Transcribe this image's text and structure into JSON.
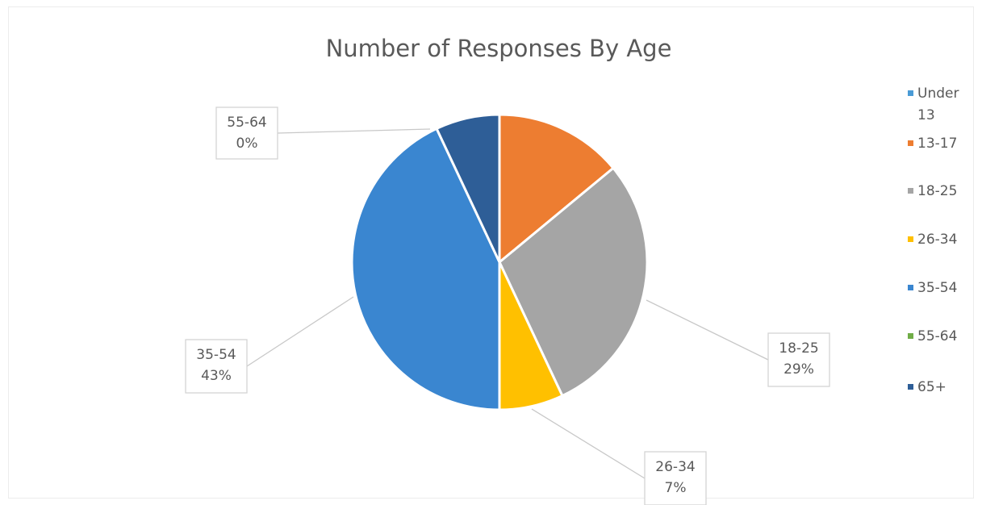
{
  "chart_data": {
    "type": "pie",
    "title": "Number of Responses By Age",
    "categories": [
      "Under 13",
      "13-17",
      "18-25",
      "26-34",
      "35-54",
      "55-64",
      "65+"
    ],
    "values": [
      14,
      0,
      29,
      7,
      43,
      0,
      7
    ],
    "colors": [
      "#ED7D31",
      "#F4B183",
      "#A5A5A5",
      "#FFC000",
      "#3A86D0",
      "#70AD47",
      "#2E5E97"
    ],
    "legend": {
      "position": "right",
      "entries": [
        {
          "label_lines": [
            "Under",
            "13"
          ],
          "color": "#4A9BD6"
        },
        {
          "label_lines": [
            "13-17"
          ],
          "color": "#ED7D31"
        },
        {
          "label_lines": [
            "18-25"
          ],
          "color": "#A5A5A5"
        },
        {
          "label_lines": [
            "26-34"
          ],
          "color": "#FFC000"
        },
        {
          "label_lines": [
            "35-54"
          ],
          "color": "#3A86D0"
        },
        {
          "label_lines": [
            "55-64"
          ],
          "color": "#70AD47"
        },
        {
          "label_lines": [
            "65+"
          ],
          "color": "#2E5E97"
        }
      ]
    },
    "data_labels": [
      {
        "category": "55-64",
        "percent": "0%"
      },
      {
        "category": "35-54",
        "percent": "43%"
      },
      {
        "category": "18-25",
        "percent": "29%"
      },
      {
        "category": "26-34",
        "percent": "7%"
      }
    ]
  }
}
